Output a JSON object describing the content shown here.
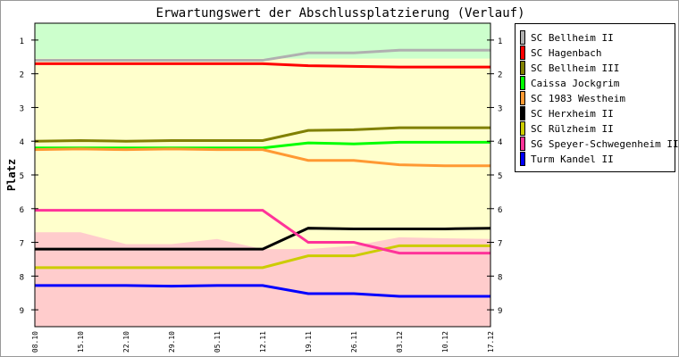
{
  "chart_data": {
    "type": "line",
    "title": "Erwartungswert der Abschlussplatzierung (Verlauf)",
    "xlabel": "",
    "ylabel": "Platz",
    "ylim": [
      0.5,
      9.5
    ],
    "y_ticks": [
      1,
      2,
      3,
      4,
      5,
      6,
      7,
      8,
      9
    ],
    "y_inverted": true,
    "categories": [
      "08.10",
      "15.10",
      "22.10",
      "29.10",
      "05.11",
      "12.11",
      "19.11",
      "26.11",
      "03.12",
      "10.12",
      "17.12"
    ],
    "legend_position": "right",
    "zones": {
      "promotion_color": "#ccffcc",
      "promotion_limit": [
        1.55,
        1.55,
        1.55,
        1.55,
        1.55,
        1.55,
        1.55,
        1.55,
        1.55,
        1.55,
        1.55
      ],
      "middle_color": "#ffffcc",
      "relegation_color": "#ffcccc",
      "relegation_limit": [
        6.7,
        6.7,
        7.05,
        7.05,
        6.9,
        7.2,
        7.2,
        7.1,
        6.85,
        6.88,
        6.9
      ]
    },
    "series": [
      {
        "name": "SC Bellheim II",
        "color": "#b0b0b0",
        "values": [
          1.6,
          1.6,
          1.6,
          1.6,
          1.6,
          1.6,
          1.38,
          1.38,
          1.3,
          1.3,
          1.3
        ]
      },
      {
        "name": "SC Hagenbach",
        "color": "#ff0000",
        "values": [
          1.7,
          1.7,
          1.7,
          1.7,
          1.7,
          1.7,
          1.76,
          1.78,
          1.8,
          1.8,
          1.8
        ]
      },
      {
        "name": "SC Bellheim III",
        "color": "#808000",
        "values": [
          4.0,
          3.98,
          4.0,
          3.98,
          3.98,
          3.98,
          3.68,
          3.66,
          3.6,
          3.6,
          3.6
        ]
      },
      {
        "name": "Caissa Jockgrim",
        "color": "#00ff00",
        "values": [
          4.2,
          4.2,
          4.2,
          4.2,
          4.2,
          4.2,
          4.05,
          4.08,
          4.03,
          4.03,
          4.03
        ]
      },
      {
        "name": "SC 1983 Westheim",
        "color": "#ff9933",
        "values": [
          4.25,
          4.23,
          4.25,
          4.23,
          4.25,
          4.25,
          4.57,
          4.57,
          4.7,
          4.73,
          4.73
        ]
      },
      {
        "name": "SC Herxheim II",
        "color": "#000000",
        "values": [
          7.2,
          7.2,
          7.2,
          7.2,
          7.2,
          7.2,
          6.58,
          6.6,
          6.6,
          6.6,
          6.58
        ]
      },
      {
        "name": "SC Rülzheim II",
        "color": "#cccc00",
        "values": [
          7.75,
          7.75,
          7.75,
          7.75,
          7.75,
          7.75,
          7.4,
          7.4,
          7.1,
          7.1,
          7.1
        ]
      },
      {
        "name": "SG Speyer-Schwegenheim III",
        "color": "#ff3399",
        "values": [
          6.05,
          6.05,
          6.05,
          6.05,
          6.05,
          6.05,
          7.0,
          7.0,
          7.32,
          7.32,
          7.32
        ]
      },
      {
        "name": "Turm Kandel II",
        "color": "#0000ff",
        "values": [
          8.28,
          8.28,
          8.28,
          8.3,
          8.28,
          8.28,
          8.52,
          8.52,
          8.6,
          8.6,
          8.6
        ]
      }
    ]
  }
}
